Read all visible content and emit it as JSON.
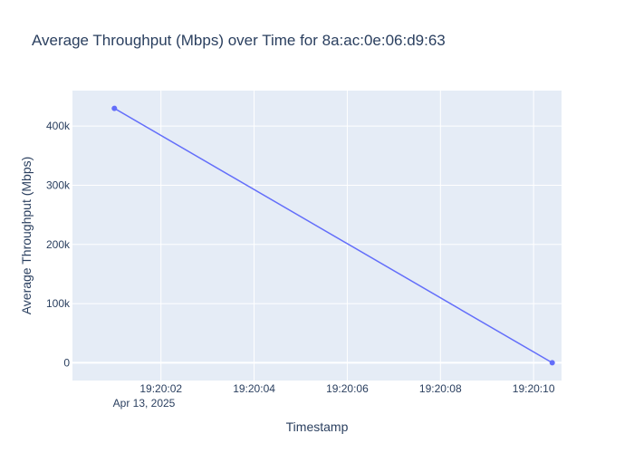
{
  "chart_data": {
    "type": "line",
    "title": "Average Throughput (Mbps) over Time for 8a:ac:0e:06:d9:63",
    "xlabel": "Timestamp",
    "ylabel": "Average Throughput (Mbps)",
    "x_date_label": "Apr 13, 2025",
    "x_ticks": [
      "19:20:02",
      "19:20:04",
      "19:20:06",
      "19:20:08",
      "19:20:10"
    ],
    "y_ticks": [
      "0",
      "100k",
      "200k",
      "300k",
      "400k"
    ],
    "y_tick_values": [
      0,
      100000,
      200000,
      300000,
      400000
    ],
    "ylim": [
      -30000,
      460000
    ],
    "xlim": [
      "2025-04-13 19:20:00.1",
      "2025-04-13 19:20:10.6"
    ],
    "x_tick_times": [
      "2025-04-13 19:20:02",
      "2025-04-13 19:20:04",
      "2025-04-13 19:20:06",
      "2025-04-13 19:20:08",
      "2025-04-13 19:20:10"
    ],
    "series": [
      {
        "x": [
          "2025-04-13 19:20:01",
          "2025-04-13 19:20:10.4"
        ],
        "y": [
          430000,
          0
        ],
        "color": "#636efa"
      }
    ],
    "plot_bg": "#e5ecf6",
    "grid": true
  }
}
